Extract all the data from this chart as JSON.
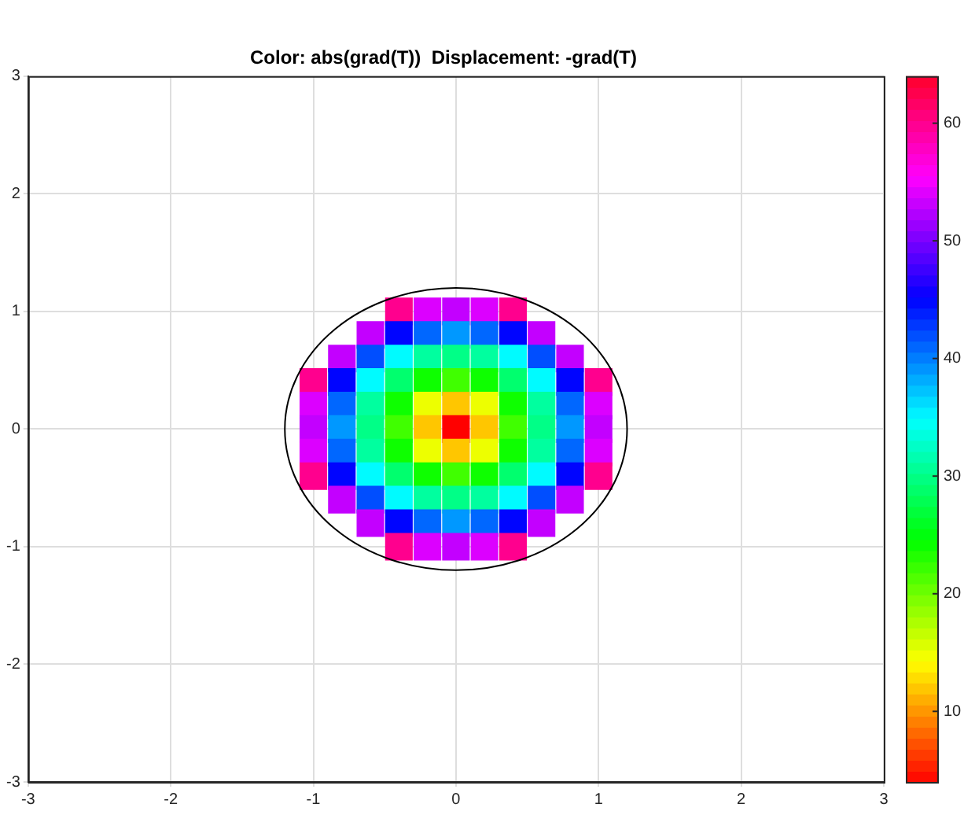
{
  "chart_data": {
    "type": "scatter",
    "title": "Color: abs(grad(T))  Displacement: -grad(T)",
    "xlim": [
      -3,
      3
    ],
    "ylim": [
      -3,
      3
    ],
    "xticks": [
      -3,
      -2,
      -1,
      0,
      1,
      2,
      3
    ],
    "yticks": [
      -3,
      -2,
      -1,
      0,
      1,
      2,
      3
    ],
    "grid": true,
    "clim": [
      4,
      64
    ],
    "cticks": [
      10,
      20,
      30,
      40,
      50,
      60
    ],
    "series": [
      {
        "type": "scatter",
        "marker": "square",
        "x": [
          -0.4,
          -0.2,
          0,
          0.2,
          0.4,
          -0.6,
          -0.4,
          -0.2,
          0,
          0.2,
          0.4,
          0.6,
          -0.8,
          -0.6,
          -0.4,
          -0.2,
          0,
          0.2,
          0.4,
          0.6,
          0.8,
          -1,
          -0.8,
          -0.6,
          -0.4,
          -0.2,
          0,
          0.2,
          0.4,
          0.6,
          0.8,
          1,
          -1,
          -0.8,
          -0.6,
          -0.4,
          -0.2,
          0,
          0.2,
          0.4,
          0.6,
          0.8,
          1,
          -1,
          -0.8,
          -0.6,
          -0.4,
          -0.2,
          0,
          0.2,
          0.4,
          0.6,
          0.8,
          1,
          -1,
          -0.8,
          -0.6,
          -0.4,
          -0.2,
          0,
          0.2,
          0.4,
          0.6,
          0.8,
          1,
          -1,
          -0.8,
          -0.6,
          -0.4,
          -0.2,
          0,
          0.2,
          0.4,
          0.6,
          0.8,
          1,
          -0.8,
          -0.6,
          -0.4,
          -0.2,
          0,
          0.2,
          0.4,
          0.6,
          0.8,
          -0.6,
          -0.4,
          -0.2,
          0,
          0.2,
          0.4,
          0.6,
          -0.4,
          -0.2,
          0,
          0.2,
          0.4
        ],
        "values": [
          1,
          1,
          1,
          1,
          1,
          0.8,
          0.8,
          0.8,
          0.8,
          0.8,
          0.8,
          0.8,
          0.6,
          0.6,
          0.6,
          0.6,
          0.6,
          0.6,
          0.6,
          0.6,
          0.6,
          0.4,
          0.4,
          0.4,
          0.4,
          0.4,
          0.4,
          0.4,
          0.4,
          0.4,
          0.4,
          0.4,
          0.2,
          0.2,
          0.2,
          0.2,
          0.2,
          0.2,
          0.2,
          0.2,
          0.2,
          0.2,
          0.2,
          0,
          0,
          0,
          0,
          0,
          0,
          0,
          0,
          0,
          0,
          0,
          -0.2,
          -0.2,
          -0.2,
          -0.2,
          -0.2,
          -0.2,
          -0.2,
          -0.2,
          -0.2,
          -0.2,
          -0.2,
          -0.4,
          -0.4,
          -0.4,
          -0.4,
          -0.4,
          -0.4,
          -0.4,
          -0.4,
          -0.4,
          -0.4,
          -0.4,
          -0.6,
          -0.6,
          -0.6,
          -0.6,
          -0.6,
          -0.6,
          -0.6,
          -0.6,
          -0.6,
          -0.8,
          -0.8,
          -0.8,
          -0.8,
          -0.8,
          -0.8,
          -0.8,
          -1,
          -1,
          -1,
          -1,
          -1
        ],
        "cvalues": [
          60,
          54,
          53,
          54,
          60,
          53,
          45,
          41,
          39,
          41,
          45,
          53,
          53,
          42,
          35,
          31,
          30,
          31,
          35,
          42,
          53,
          60,
          45,
          35,
          29,
          24,
          22,
          24,
          29,
          35,
          45,
          60,
          54,
          41,
          31,
          24,
          15,
          12,
          15,
          24,
          31,
          41,
          54,
          53,
          39,
          30,
          22,
          12,
          4,
          12,
          22,
          30,
          39,
          53,
          54,
          41,
          31,
          24,
          15,
          12,
          15,
          24,
          31,
          41,
          54,
          60,
          45,
          35,
          29,
          24,
          22,
          24,
          29,
          35,
          45,
          60,
          53,
          42,
          35,
          31,
          30,
          31,
          35,
          42,
          53,
          53,
          45,
          41,
          39,
          41,
          45,
          53,
          60,
          54,
          53,
          54,
          60
        ],
        "colors": [
          "#ff008e",
          "#dc00ff",
          "#c300ff",
          "#dc00ff",
          "#ff008e",
          "#c300ff",
          "#0004ff",
          "#0067ff",
          "#0098ff",
          "#0067ff",
          "#0004ff",
          "#c300ff",
          "#c300ff",
          "#004eff",
          "#00fbff",
          "#00ff9f",
          "#00ff87",
          "#00ff9f",
          "#00fbff",
          "#004eff",
          "#c300ff",
          "#ff008e",
          "#0004ff",
          "#00fbff",
          "#00ff6e",
          "#0eff00",
          "#40ff00",
          "#0eff00",
          "#00ff6e",
          "#00fbff",
          "#0004ff",
          "#ff008e",
          "#dc00ff",
          "#0067ff",
          "#00ff9f",
          "#0eff00",
          "#edff00",
          "#ffc600",
          "#edff00",
          "#0eff00",
          "#00ff9f",
          "#0067ff",
          "#dc00ff",
          "#c300ff",
          "#0098ff",
          "#00ff87",
          "#40ff00",
          "#ffc600",
          "#ff0000",
          "#ffc600",
          "#40ff00",
          "#00ff87",
          "#0098ff",
          "#c300ff",
          "#dc00ff",
          "#0067ff",
          "#00ff9f",
          "#0eff00",
          "#edff00",
          "#ffc600",
          "#edff00",
          "#0eff00",
          "#00ff9f",
          "#0067ff",
          "#dc00ff",
          "#ff008e",
          "#0004ff",
          "#00fbff",
          "#00ff6e",
          "#0eff00",
          "#40ff00",
          "#0eff00",
          "#00ff6e",
          "#00fbff",
          "#0004ff",
          "#ff008e",
          "#c300ff",
          "#004eff",
          "#00fbff",
          "#00ff9f",
          "#00ff87",
          "#00ff9f",
          "#00fbff",
          "#004eff",
          "#c300ff",
          "#c300ff",
          "#0004ff",
          "#0067ff",
          "#0098ff",
          "#0067ff",
          "#0004ff",
          "#c300ff",
          "#ff008e",
          "#dc00ff",
          "#c300ff",
          "#dc00ff",
          "#ff008e"
        ]
      }
    ]
  }
}
